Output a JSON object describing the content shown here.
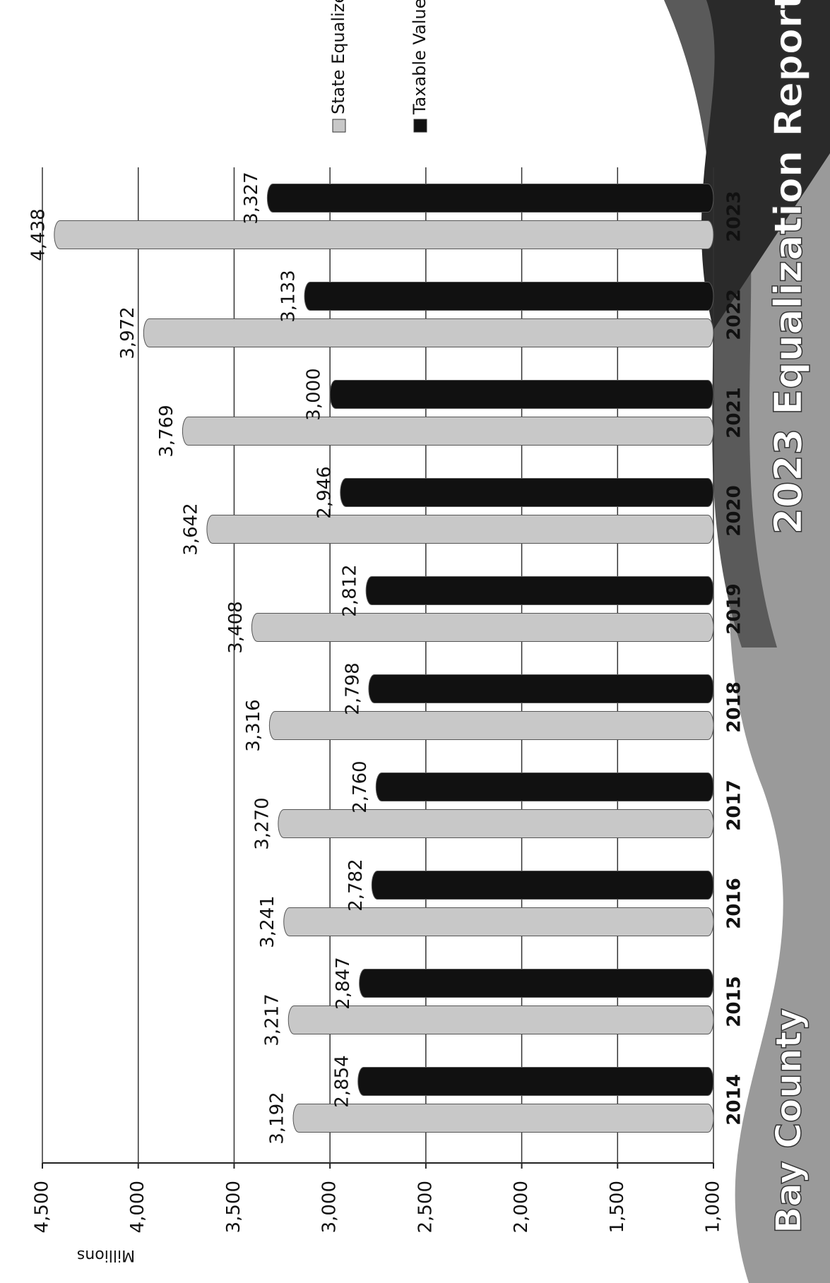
{
  "chart_data": {
    "type": "bar",
    "title": "2023 Equalization Report",
    "subtitle": "Bay County",
    "y_label": "Millions",
    "categories": [
      "2014",
      "2015",
      "2016",
      "2017",
      "2018",
      "2019",
      "2020",
      "2021",
      "2022",
      "2023"
    ],
    "series": [
      {
        "name": "State Equalized Value",
        "color": "#c8c8c8",
        "values": [
          3192,
          3217,
          3241,
          3270,
          3316,
          3408,
          3642,
          3769,
          3972,
          4438
        ],
        "value_labels": [
          "3,192",
          "3,217",
          "3,241",
          "3,270",
          "3,316",
          "3,408",
          "3,642",
          "3,769",
          "3,972",
          "4,438"
        ]
      },
      {
        "name": "Taxable Value",
        "color": "#111111",
        "values": [
          2854,
          2847,
          2782,
          2760,
          2798,
          2812,
          2946,
          3000,
          3133,
          3327
        ],
        "value_labels": [
          "2,854",
          "2,847",
          "2,782",
          "2,760",
          "2,798",
          "2,812",
          "2,946",
          "3,000",
          "3,133",
          "3,327"
        ]
      }
    ],
    "ylim": [
      1000,
      4500
    ],
    "yticks": [
      {
        "value": 1000,
        "label": "1,000"
      },
      {
        "value": 1500,
        "label": "1,500"
      },
      {
        "value": 2000,
        "label": "2,000"
      },
      {
        "value": 2500,
        "label": "2,500"
      },
      {
        "value": 3000,
        "label": "3,000"
      },
      {
        "value": 3500,
        "label": "3,500"
      },
      {
        "value": 4000,
        "label": "4,000"
      },
      {
        "value": 4500,
        "label": "4,500"
      }
    ],
    "grid": true
  }
}
